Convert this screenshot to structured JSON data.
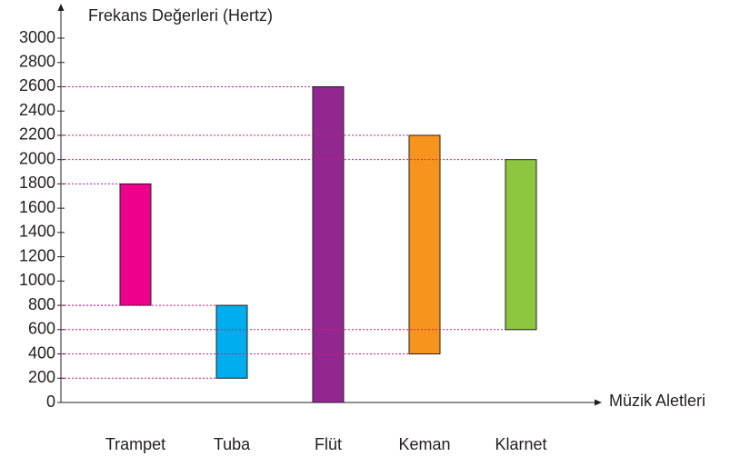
{
  "chart_data": {
    "type": "floating-bar",
    "y_axis_label": "Frekans Değerleri (Hertz)",
    "x_axis_label": "Müzik Aletleri",
    "categories": [
      "Trampet",
      "Tuba",
      "Flüt",
      "Keman",
      "Klarnet"
    ],
    "low": [
      800,
      200,
      0,
      400,
      600
    ],
    "high": [
      1800,
      800,
      2600,
      2200,
      2000
    ],
    "colors": [
      "#ec008c",
      "#00aeef",
      "#92278f",
      "#f7941d",
      "#8dc63f"
    ],
    "guide_color": "#d4148c",
    "ylim": [
      0,
      3000
    ],
    "yticks": [
      0,
      200,
      400,
      600,
      800,
      1000,
      1200,
      1400,
      1600,
      1800,
      2000,
      2200,
      2400,
      2600,
      2800,
      3000
    ]
  }
}
